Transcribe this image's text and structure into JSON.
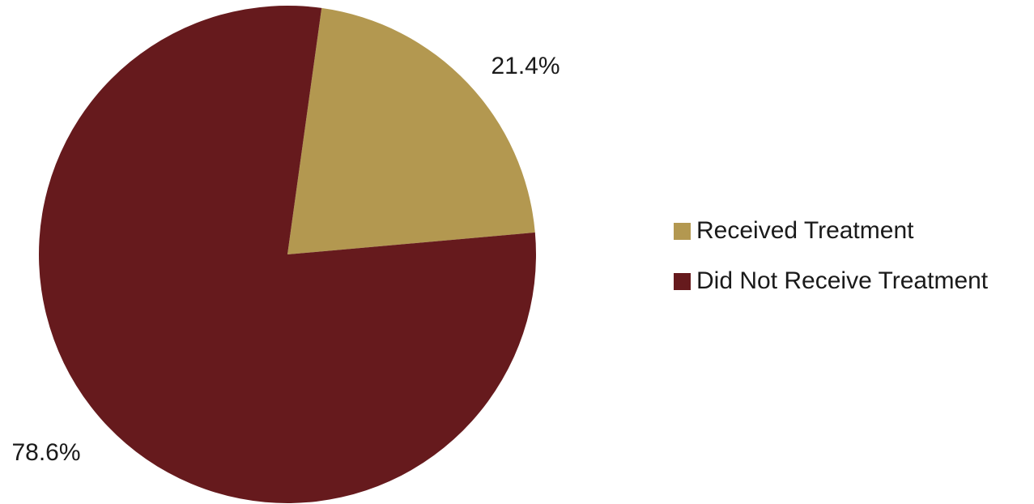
{
  "chart_data": {
    "type": "pie",
    "title": "",
    "slices": [
      {
        "label": "Received Treatment",
        "value": 21.4,
        "data_label": "21.4%",
        "color": "#B39850"
      },
      {
        "label": "Did Not Receive Treatment",
        "value": 78.6,
        "data_label": "78.6%",
        "color": "#661A1D"
      }
    ],
    "legend_placement": "right"
  }
}
